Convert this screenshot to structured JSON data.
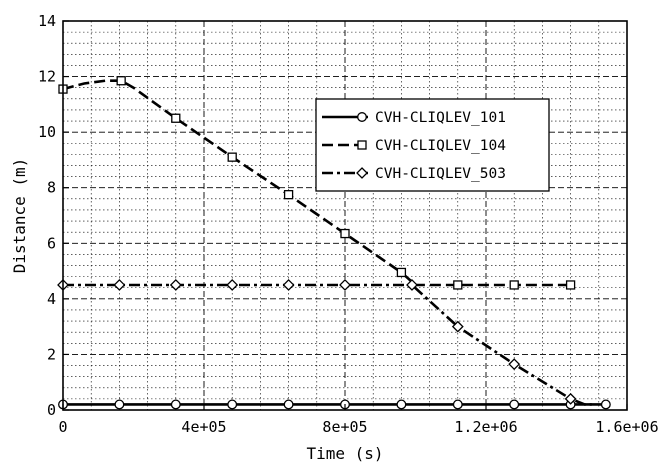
{
  "chart_data": {
    "type": "line",
    "xlabel": "Time (s)",
    "ylabel": "Distance (m)",
    "xlim": [
      0,
      1600000
    ],
    "ylim": [
      0,
      14
    ],
    "xticks": [
      0,
      400000,
      800000,
      1200000,
      1600000
    ],
    "xtick_labels": [
      "0",
      "4e+05",
      "8e+05",
      "1.2e+06",
      "1.6e+06"
    ],
    "yticks": [
      0,
      2,
      4,
      6,
      8,
      10,
      12,
      14
    ],
    "ytick_labels": [
      "0",
      "2",
      "4",
      "6",
      "8",
      "10",
      "12",
      "14"
    ],
    "grid": true,
    "legend_position": "top-right",
    "series": [
      {
        "name": "CVH-CLIQLEV_101",
        "linestyle": "solid",
        "marker": "circle",
        "x": [
          0,
          160000,
          320000,
          480000,
          640000,
          800000,
          960000,
          1120000,
          1280000,
          1440000,
          1540000
        ],
        "y": [
          0.2,
          0.2,
          0.2,
          0.2,
          0.2,
          0.2,
          0.2,
          0.2,
          0.2,
          0.2,
          0.2
        ]
      },
      {
        "name": "CVH-CLIQLEV_104",
        "linestyle": "dashed",
        "marker": "square",
        "x": [
          0,
          60000,
          120000,
          165000,
          200000,
          320000,
          480000,
          640000,
          800000,
          960000,
          1000000,
          1120000,
          1280000,
          1440000
        ],
        "y": [
          11.55,
          11.75,
          11.85,
          11.85,
          11.6,
          10.5,
          9.1,
          7.75,
          6.35,
          4.95,
          4.5,
          4.5,
          4.5,
          4.5
        ],
        "marker_indices": [
          0,
          3,
          5,
          6,
          7,
          8,
          9,
          11,
          12,
          13
        ]
      },
      {
        "name": "CVH-CLIQLEV_503",
        "linestyle": "dashdot",
        "marker": "diamond",
        "x": [
          0,
          160000,
          320000,
          480000,
          640000,
          800000,
          990000,
          1120000,
          1280000,
          1440000,
          1480000,
          1500000
        ],
        "y": [
          4.5,
          4.5,
          4.5,
          4.5,
          4.5,
          4.5,
          4.5,
          3.0,
          1.65,
          0.4,
          0.2,
          0.2
        ],
        "marker_indices": [
          0,
          1,
          2,
          3,
          4,
          5,
          6,
          7,
          8,
          9
        ]
      }
    ]
  }
}
